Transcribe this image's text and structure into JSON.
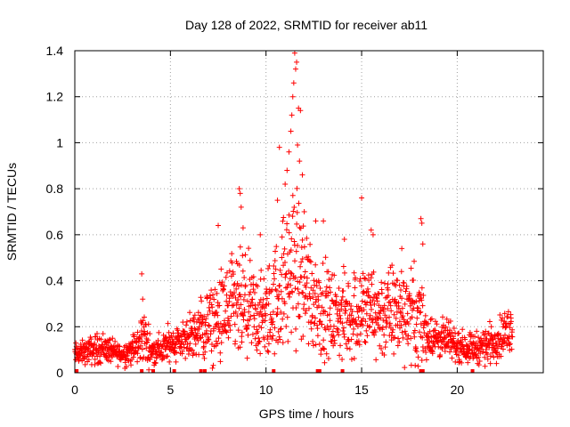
{
  "chart_data": {
    "type": "scatter",
    "title": "Day 128 of 2022, SRMTID for receiver ab11",
    "xlabel": "GPS time / hours",
    "ylabel": "SRMTID / TECUs",
    "xlim": [
      0,
      24.5
    ],
    "ylim": [
      0,
      1.4
    ],
    "xticks": [
      0,
      5,
      10,
      15,
      20
    ],
    "xtick_labels": [
      "0",
      "5",
      "10",
      "15",
      "20"
    ],
    "yticks": [
      0,
      0.2,
      0.4,
      0.6,
      0.8,
      1.0,
      1.2,
      1.4
    ],
    "ytick_labels": [
      "0",
      "0.2",
      "0.4",
      "0.6",
      "0.8",
      "1",
      "1.2",
      "1.4"
    ],
    "grid": true,
    "marker": "+",
    "color": "#ff0000",
    "x_range_hours": [
      0,
      22.9
    ],
    "baseline_markers_hours": [
      0.1,
      3.5,
      4.1,
      5.2,
      6.6,
      6.8,
      10.4,
      12.7,
      12.8,
      14.0,
      18.1,
      18.2,
      20.8
    ],
    "envelope": {
      "hours": [
        0,
        0.5,
        1,
        1.5,
        2,
        2.5,
        3,
        3.4,
        3.5,
        4,
        4.5,
        5,
        5.5,
        6,
        6.5,
        7,
        7.5,
        8,
        8.5,
        9,
        9.5,
        10,
        10.5,
        11,
        11.5,
        12,
        12.5,
        13,
        13.5,
        14,
        14.5,
        15,
        15.5,
        16,
        16.5,
        17,
        17.5,
        18,
        18.5,
        19,
        19.5,
        20,
        20.5,
        21,
        21.5,
        22,
        22.9
      ],
      "median": [
        0.08,
        0.09,
        0.1,
        0.11,
        0.09,
        0.08,
        0.1,
        0.12,
        0.18,
        0.09,
        0.1,
        0.13,
        0.14,
        0.15,
        0.18,
        0.2,
        0.22,
        0.26,
        0.28,
        0.27,
        0.25,
        0.24,
        0.32,
        0.4,
        0.48,
        0.4,
        0.32,
        0.28,
        0.25,
        0.24,
        0.25,
        0.28,
        0.27,
        0.25,
        0.26,
        0.28,
        0.27,
        0.24,
        0.16,
        0.15,
        0.14,
        0.12,
        0.11,
        0.11,
        0.12,
        0.14,
        0.2
      ],
      "spread": [
        0.03,
        0.03,
        0.04,
        0.04,
        0.03,
        0.03,
        0.04,
        0.05,
        0.08,
        0.04,
        0.04,
        0.05,
        0.05,
        0.06,
        0.08,
        0.1,
        0.12,
        0.14,
        0.15,
        0.14,
        0.12,
        0.12,
        0.15,
        0.18,
        0.22,
        0.18,
        0.14,
        0.12,
        0.11,
        0.11,
        0.12,
        0.13,
        0.12,
        0.12,
        0.13,
        0.13,
        0.12,
        0.12,
        0.06,
        0.05,
        0.05,
        0.04,
        0.04,
        0.04,
        0.05,
        0.05,
        0.06
      ]
    },
    "outliers": [
      {
        "x": 3.5,
        "y": 0.43
      },
      {
        "x": 3.55,
        "y": 0.32
      },
      {
        "x": 7.5,
        "y": 0.64
      },
      {
        "x": 8.6,
        "y": 0.8
      },
      {
        "x": 8.65,
        "y": 0.78
      },
      {
        "x": 8.7,
        "y": 0.72
      },
      {
        "x": 8.8,
        "y": 0.63
      },
      {
        "x": 9.7,
        "y": 0.6
      },
      {
        "x": 10.6,
        "y": 0.75
      },
      {
        "x": 10.7,
        "y": 0.98
      },
      {
        "x": 11.0,
        "y": 0.82
      },
      {
        "x": 11.1,
        "y": 0.88
      },
      {
        "x": 11.2,
        "y": 0.96
      },
      {
        "x": 11.3,
        "y": 1.05
      },
      {
        "x": 11.35,
        "y": 1.12
      },
      {
        "x": 11.4,
        "y": 1.2
      },
      {
        "x": 11.45,
        "y": 1.26
      },
      {
        "x": 11.5,
        "y": 1.39
      },
      {
        "x": 11.6,
        "y": 1.35
      },
      {
        "x": 11.55,
        "y": 1.32
      },
      {
        "x": 11.7,
        "y": 1.15
      },
      {
        "x": 11.8,
        "y": 1.14
      },
      {
        "x": 11.65,
        "y": 0.99
      },
      {
        "x": 11.75,
        "y": 0.92
      },
      {
        "x": 11.9,
        "y": 0.86
      },
      {
        "x": 12.0,
        "y": 0.7
      },
      {
        "x": 12.6,
        "y": 0.66
      },
      {
        "x": 13.0,
        "y": 0.66
      },
      {
        "x": 14.1,
        "y": 0.58
      },
      {
        "x": 15.0,
        "y": 0.76
      },
      {
        "x": 15.5,
        "y": 0.62
      },
      {
        "x": 15.6,
        "y": 0.6
      },
      {
        "x": 17.1,
        "y": 0.54
      },
      {
        "x": 18.1,
        "y": 0.67
      },
      {
        "x": 18.15,
        "y": 0.65
      },
      {
        "x": 18.2,
        "y": 0.56
      }
    ]
  }
}
